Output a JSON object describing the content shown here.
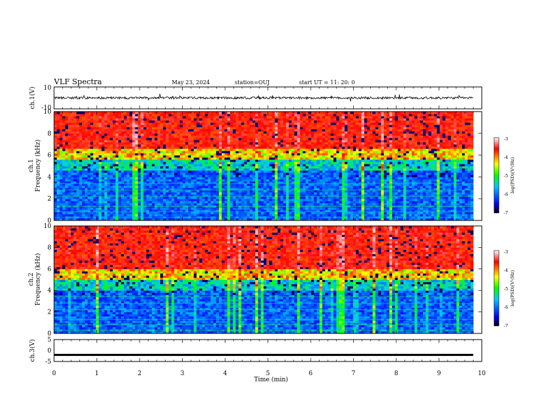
{
  "header": {
    "title": "VLF Spectra",
    "date": "May 23, 2024",
    "station": "station=OUJ",
    "start": "start  UT =  11: 20: 0"
  },
  "chart_data": [
    {
      "type": "line",
      "ylabel": "ch.1(V)",
      "ylim": [
        -10,
        10
      ],
      "yticks": [
        "10",
        "-10"
      ],
      "xlim": [
        0,
        10
      ],
      "description_values": {
        "baseline": 0,
        "noise_amplitude": 2
      }
    },
    {
      "type": "heatmap",
      "ylabel_top": "ch.1",
      "ylabel": "Frequency (kHz)",
      "ylim": [
        0,
        10
      ],
      "yticks": [
        "0",
        "2",
        "4",
        "6",
        "8",
        "10"
      ],
      "xlim": [
        0,
        9.8
      ],
      "colorbar": {
        "label": "log(PSD)(V²/Hz)",
        "ticks": [
          "-3",
          "-4",
          "-5",
          "-6",
          "-7"
        ],
        "range": [
          -7,
          -3
        ]
      },
      "high_level_above_khz": 5.5,
      "low_band_khz": [
        0,
        5
      ]
    },
    {
      "type": "heatmap",
      "ylabel_top": "ch.2",
      "ylabel": "Frequency (kHz)",
      "ylim": [
        0,
        10
      ],
      "yticks": [
        "0",
        "2",
        "4",
        "6",
        "8",
        "10"
      ],
      "xlim": [
        0,
        9.8
      ],
      "colorbar": {
        "label": "log(PSD)(V²/Hz)",
        "ticks": [
          "-3",
          "-4",
          "-5",
          "-6",
          "-7"
        ],
        "range": [
          -7,
          -3
        ]
      },
      "high_level_above_khz": 5,
      "low_band_khz": [
        0,
        5
      ]
    },
    {
      "type": "line",
      "ylabel": "ch.3(V)",
      "ylim": [
        -5,
        5
      ],
      "yticks": [
        "5",
        "0",
        "-5"
      ],
      "xlim": [
        0,
        10
      ],
      "xlabel": "Time (min)",
      "xticks": [
        "0",
        "1",
        "2",
        "3",
        "4",
        "5",
        "6",
        "7",
        "8",
        "9",
        "10"
      ],
      "constant_value": -2
    }
  ],
  "colors": {
    "colormap": [
      "#000000",
      "#0000ff",
      "#00c8ff",
      "#00ff00",
      "#ffff00",
      "#ff0000",
      "#ffffff"
    ]
  }
}
